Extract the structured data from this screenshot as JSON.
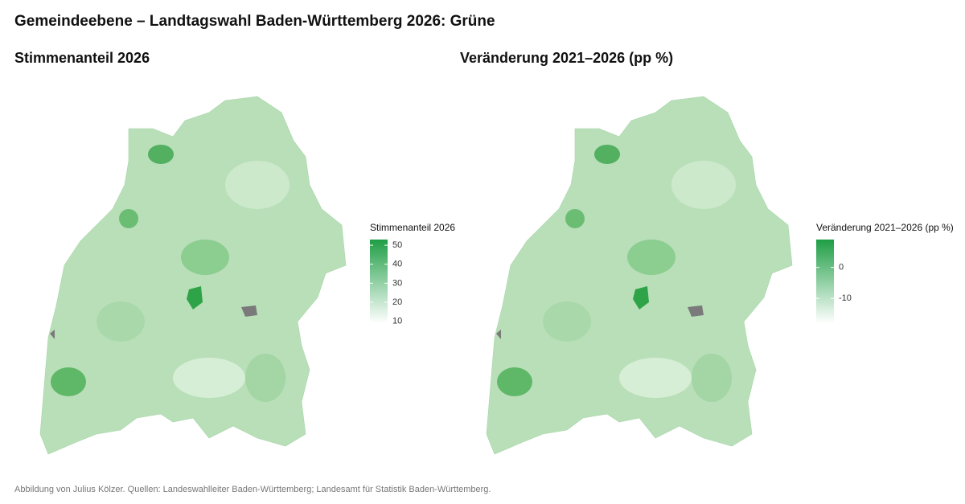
{
  "title": "Gemeindeebene – Landtagswahl Baden-Württemberg 2026: Grüne",
  "caption": "Abbildung von Julius Kölzer. Quellen: Landeswahlleiter Baden-Württemberg; Landesamt für Statistik Baden-Württemberg.",
  "maps": [
    {
      "title": "Stimmenanteil 2026",
      "legend": {
        "title": "Stimmenanteil 2026",
        "lim": [
          9,
          53
        ],
        "ticks": [
          10,
          20,
          30,
          40,
          50
        ],
        "colors": [
          "#ffffff",
          "#1f9e45"
        ]
      }
    },
    {
      "title": "Veränderung 2021–2026 (pp %)",
      "legend": {
        "title": "Veränderung 2021–2026 (pp %)",
        "lim": [
          -18,
          9
        ],
        "ticks": [
          -10,
          0
        ],
        "colors": [
          "#ffffff",
          "#1f9e45"
        ]
      }
    }
  ]
}
